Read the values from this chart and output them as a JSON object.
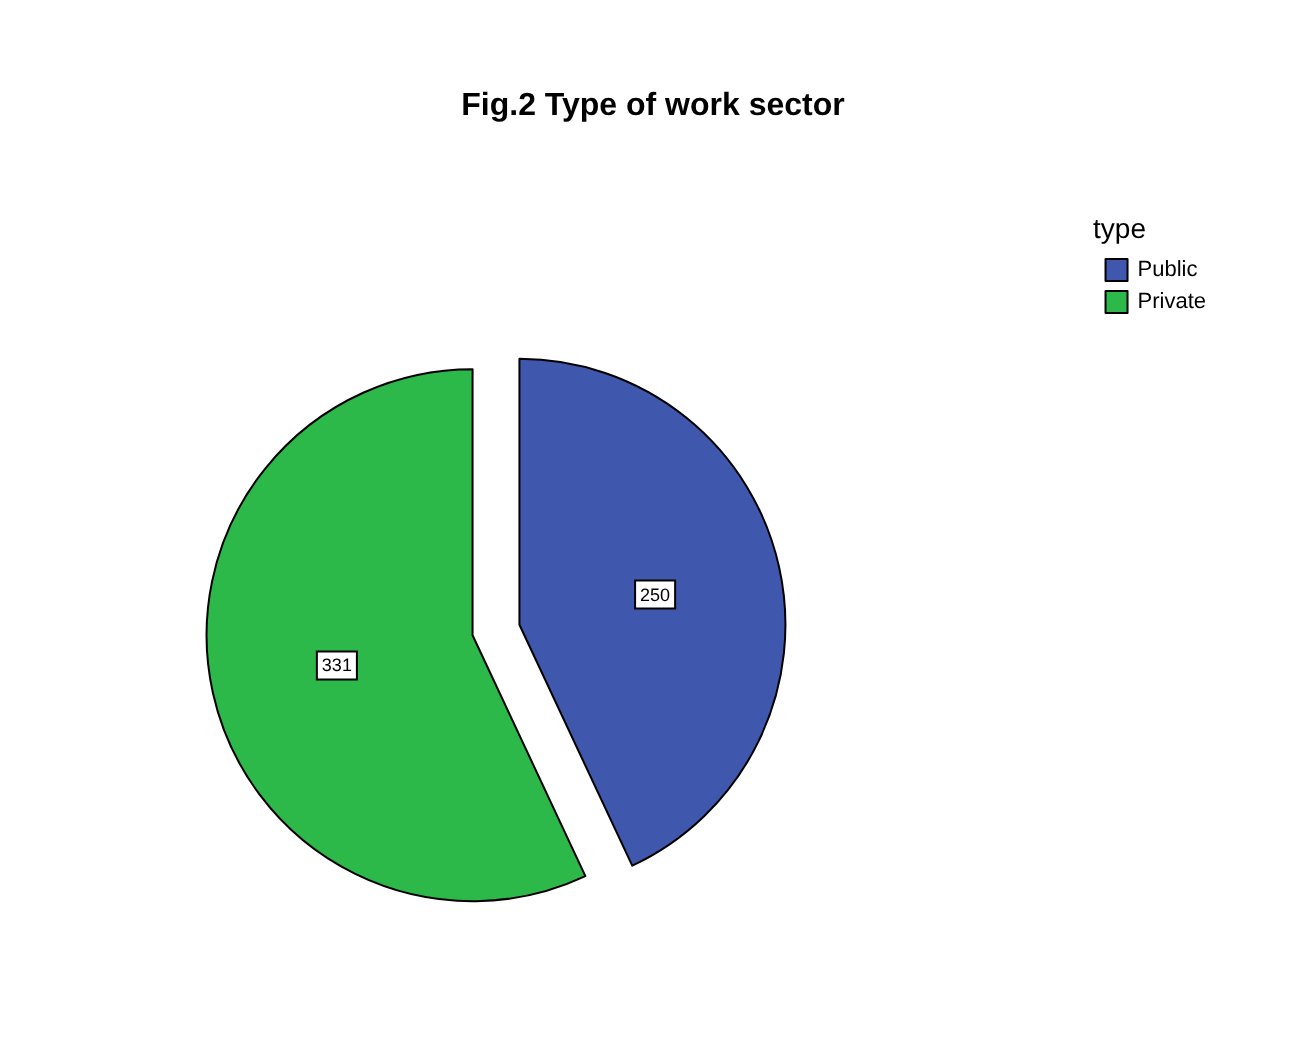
{
  "chart_data": {
    "type": "pie",
    "title": "Fig.2 Type of work sector",
    "legend_title": "type",
    "legend": "top right",
    "data_labels": true,
    "categories": [
      "Public",
      "Private"
    ],
    "values": [
      250,
      331
    ],
    "colors": [
      "#3f58ad",
      "#2db84a"
    ]
  }
}
